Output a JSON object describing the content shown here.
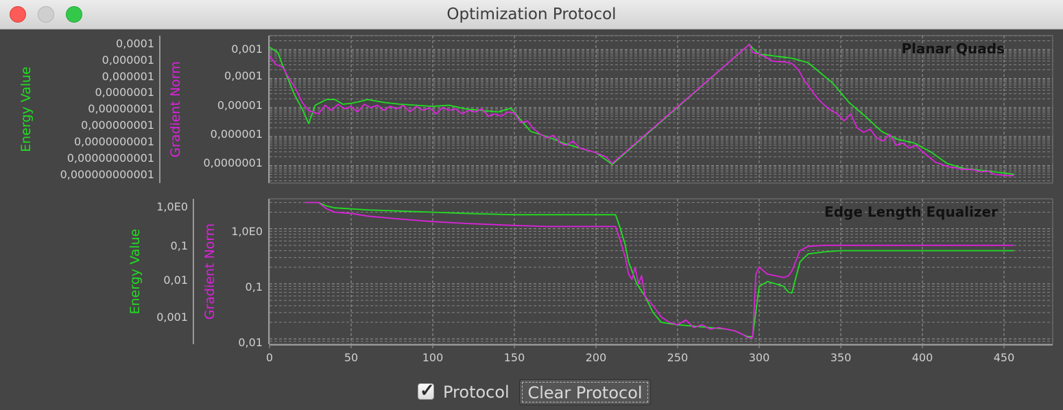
{
  "window": {
    "title": "Optimization Protocol"
  },
  "colors": {
    "energy": "#22dd22",
    "gradient": "#dd22dd",
    "background": "#454545",
    "grid": "#9a9a9a"
  },
  "controls": {
    "protocol_label": "Protocol",
    "protocol_checked": true,
    "clear_label": "Clear Protocol"
  },
  "chart_data": [
    {
      "type": "line",
      "title": "Planar Quads",
      "axis_labels": {
        "energy": "Energy Value",
        "gradient": "Gradient Norm"
      },
      "scale": "log",
      "grid": true,
      "xlim": [
        0,
        480
      ],
      "energy_ticks": [
        "0,0001",
        "0,000001",
        "0,000001",
        "0,0000001",
        "0,00000001",
        "0,000000001",
        "0,0000000001",
        "0,00000000001",
        "0,000000000001"
      ],
      "gradient_ticks": [
        "0,001",
        "0,0001",
        "0,00001",
        "0,000001",
        "0,0000001"
      ],
      "gradient_ylim": [
        2.5e-08,
        0.003
      ],
      "series": [
        {
          "name": "Energy Value",
          "color": "#22dd22",
          "x": [
            0,
            5,
            10,
            15,
            20,
            24,
            28,
            35,
            40,
            45,
            50,
            55,
            60,
            70,
            80,
            90,
            100,
            110,
            120,
            130,
            140,
            148,
            152,
            160,
            170,
            180,
            190,
            200,
            210,
            294,
            296,
            300,
            320,
            330,
            345,
            355,
            365,
            375,
            385,
            395,
            405,
            415,
            425,
            435,
            445,
            456
          ],
          "y": [
            0.0012,
            0.0008,
            0.00015,
            3e-05,
            9e-06,
            2.8e-06,
            1.2e-05,
            1.9e-05,
            1.9e-05,
            1.3e-05,
            1.4e-05,
            1.6e-05,
            1.9e-05,
            1.5e-05,
            1.3e-05,
            1.2e-05,
            1.1e-05,
            1.2e-05,
            9e-06,
            8e-06,
            7e-06,
            9.5e-06,
            5e-06,
            1.5e-06,
            1e-06,
            6e-07,
            4e-07,
            2.8e-07,
            1.1e-07,
            0.0015,
            0.0011,
            0.0007,
            0.0005,
            0.00035,
            7e-05,
            1.5e-05,
            5e-06,
            1.5e-06,
            8e-07,
            6e-07,
            3e-07,
            1.2e-07,
            8e-08,
            7e-08,
            6e-08,
            5e-08
          ]
        },
        {
          "name": "Gradient Norm",
          "color": "#dd22dd",
          "x": [
            0,
            4,
            8,
            12,
            16,
            20,
            24,
            30,
            34,
            38,
            42,
            46,
            50,
            54,
            58,
            62,
            66,
            70,
            74,
            78,
            82,
            86,
            90,
            94,
            98,
            102,
            106,
            110,
            114,
            118,
            122,
            126,
            130,
            134,
            138,
            142,
            146,
            150,
            154,
            158,
            162,
            166,
            170,
            174,
            178,
            182,
            186,
            190,
            194,
            198,
            202,
            206,
            210,
            294,
            296,
            300,
            304,
            308,
            312,
            316,
            320,
            324,
            328,
            332,
            336,
            340,
            344,
            348,
            352,
            356,
            360,
            364,
            368,
            372,
            376,
            380,
            384,
            388,
            392,
            396,
            400,
            404,
            408,
            412,
            416,
            420,
            424,
            428,
            432,
            436,
            440,
            444,
            448,
            452,
            456
          ],
          "y": [
            0.0006,
            0.0003,
            0.00025,
            0.0001,
            4.5e-05,
            1.5e-05,
            8e-06,
            6e-06,
            1.2e-05,
            8e-06,
            1.3e-05,
            9e-06,
            1.1e-05,
            7e-06,
            1.3e-05,
            1e-05,
            1.2e-05,
            8e-06,
            1.1e-05,
            9e-06,
            1.2e-05,
            7e-06,
            1.1e-05,
            8e-06,
            1e-05,
            6e-06,
            1e-05,
            8e-06,
            9e-06,
            6e-06,
            8e-06,
            7e-06,
            9e-06,
            5e-06,
            6e-06,
            5e-06,
            7e-06,
            6.5e-06,
            3e-06,
            3.5e-06,
            1.8e-06,
            1.2e-06,
            9e-07,
            1.1e-06,
            6e-07,
            5e-07,
            7e-07,
            4e-07,
            3.5e-07,
            3e-07,
            2.5e-07,
            2e-07,
            1.2e-07,
            0.0015,
            0.0008,
            0.0007,
            0.00055,
            0.0004,
            0.00038,
            0.00037,
            0.00033,
            0.0002,
            8e-05,
            4e-05,
            2e-05,
            1.2e-05,
            8e-06,
            6e-06,
            3.5e-06,
            6e-06,
            2e-06,
            1.4e-06,
            1.8e-06,
            9e-07,
            7e-07,
            1.2e-06,
            5e-07,
            6e-07,
            4e-07,
            5e-07,
            3e-07,
            2e-07,
            1.3e-07,
            1.1e-07,
            9e-08,
            8.5e-08,
            7.5e-08,
            7.5e-08,
            7e-08,
            6e-08,
            6.5e-08,
            5e-08,
            4.8e-08,
            4.5e-08,
            4.5e-08
          ]
        }
      ]
    },
    {
      "type": "line",
      "title": "Edge Length Equalizer",
      "axis_labels": {
        "energy": "Energy Value",
        "gradient": "Gradient Norm"
      },
      "scale": "log",
      "grid": true,
      "xlim": [
        0,
        480
      ],
      "x_ticks": [
        "0",
        "50",
        "100",
        "150",
        "200",
        "250",
        "300",
        "350",
        "400",
        "450"
      ],
      "energy_ticks": [
        "1,0E0",
        "0,1",
        "0,01",
        "0,001"
      ],
      "gradient_ticks": [
        "1,0E0",
        "0,1",
        "0,01"
      ],
      "gradient_ylim": [
        0.008,
        3.5
      ],
      "series": [
        {
          "name": "Energy Value",
          "color": "#22dd22",
          "x": [
            22,
            30,
            35,
            40,
            50,
            60,
            80,
            100,
            120,
            150,
            170,
            200,
            212,
            215,
            218,
            220,
            225,
            230,
            235,
            240,
            250,
            260,
            270,
            280,
            285,
            290,
            293,
            296,
            300,
            305,
            310,
            315,
            318,
            320,
            325,
            330,
            340,
            350,
            400,
            456
          ],
          "y": [
            3.0,
            3.0,
            2.6,
            2.4,
            2.3,
            2.2,
            2.1,
            2.0,
            1.9,
            1.8,
            1.8,
            1.8,
            1.8,
            1.0,
            0.5,
            0.25,
            0.1,
            0.06,
            0.03,
            0.02,
            0.018,
            0.017,
            0.016,
            0.015,
            0.014,
            0.012,
            0.011,
            0.011,
            0.09,
            0.11,
            0.1,
            0.09,
            0.07,
            0.068,
            0.25,
            0.35,
            0.38,
            0.4,
            0.4,
            0.4
          ]
        },
        {
          "name": "Gradient Norm",
          "color": "#dd22dd",
          "x": [
            22,
            30,
            35,
            40,
            50,
            60,
            80,
            100,
            120,
            150,
            170,
            200,
            212,
            215,
            218,
            220,
            222,
            224,
            226,
            228,
            230,
            235,
            240,
            245,
            250,
            255,
            260,
            265,
            270,
            275,
            280,
            285,
            290,
            293,
            296,
            298,
            300,
            305,
            310,
            315,
            318,
            320,
            325,
            330,
            340,
            350,
            400,
            456
          ],
          "y": [
            3.0,
            3.0,
            2.3,
            2.0,
            1.9,
            1.7,
            1.5,
            1.35,
            1.25,
            1.15,
            1.1,
            1.1,
            1.1,
            0.6,
            0.3,
            0.15,
            0.12,
            0.2,
            0.1,
            0.14,
            0.06,
            0.04,
            0.025,
            0.02,
            0.018,
            0.022,
            0.016,
            0.018,
            0.015,
            0.016,
            0.015,
            0.014,
            0.012,
            0.0105,
            0.0105,
            0.15,
            0.2,
            0.15,
            0.14,
            0.13,
            0.14,
            0.17,
            0.4,
            0.48,
            0.5,
            0.5,
            0.5,
            0.5
          ]
        }
      ]
    }
  ]
}
